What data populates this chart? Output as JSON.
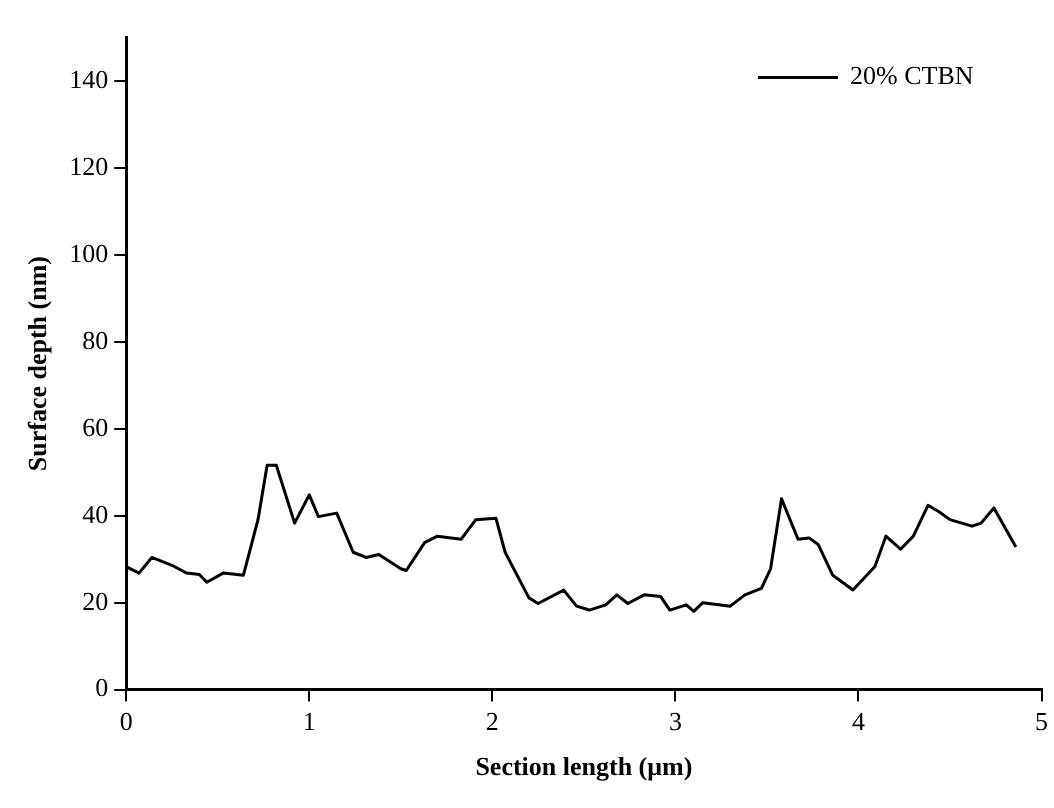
{
  "chart_data": {
    "type": "line",
    "xlabel": "Section length (μm)",
    "ylabel": "Surface depth (nm)",
    "xlim": [
      0,
      5
    ],
    "xticks": [
      0,
      1,
      2,
      3,
      4,
      5
    ],
    "ylim": [
      0,
      150
    ],
    "yticks": [
      0,
      20,
      40,
      60,
      80,
      100,
      120,
      140
    ],
    "grid": false,
    "legend": "top right",
    "marker": "none",
    "line_style": "solid",
    "series": [
      {
        "name": "20% CTBN",
        "color": "#000000",
        "x": [
          0,
          0.07,
          0.14,
          0.25,
          0.33,
          0.4,
          0.44,
          0.53,
          0.64,
          0.72,
          0.77,
          0.82,
          0.92,
          1.0,
          1.05,
          1.15,
          1.24,
          1.31,
          1.38,
          1.5,
          1.53,
          1.63,
          1.7,
          1.83,
          1.91,
          2.02,
          2.07,
          2.2,
          2.25,
          2.39,
          2.46,
          2.53,
          2.62,
          2.68,
          2.74,
          2.83,
          2.92,
          2.97,
          3.06,
          3.1,
          3.15,
          3.3,
          3.38,
          3.47,
          3.52,
          3.58,
          3.67,
          3.73,
          3.78,
          3.86,
          3.97,
          4.09,
          4.15,
          4.23,
          4.3,
          4.38,
          4.44,
          4.5,
          4.62,
          4.67,
          4.74,
          4.86
        ],
        "values": [
          28.3,
          26.8,
          30.4,
          28.6,
          26.8,
          26.5,
          24.7,
          26.8,
          26.3,
          39.1,
          51.6,
          51.6,
          38.3,
          44.8,
          39.8,
          40.6,
          31.6,
          30.4,
          31.1,
          27.8,
          27.4,
          33.8,
          35.3,
          34.6,
          39.1,
          39.4,
          31.6,
          21.1,
          19.8,
          22.9,
          19.2,
          18.3,
          19.5,
          21.8,
          19.8,
          21.8,
          21.4,
          18.3,
          19.5,
          18.0,
          20.0,
          19.2,
          21.8,
          23.3,
          27.8,
          43.9,
          34.6,
          34.9,
          33.4,
          26.3,
          22.9,
          28.3,
          35.3,
          32.3,
          35.3,
          42.4,
          40.9,
          39.1,
          37.6,
          38.3,
          41.8,
          32.8
        ]
      }
    ]
  }
}
